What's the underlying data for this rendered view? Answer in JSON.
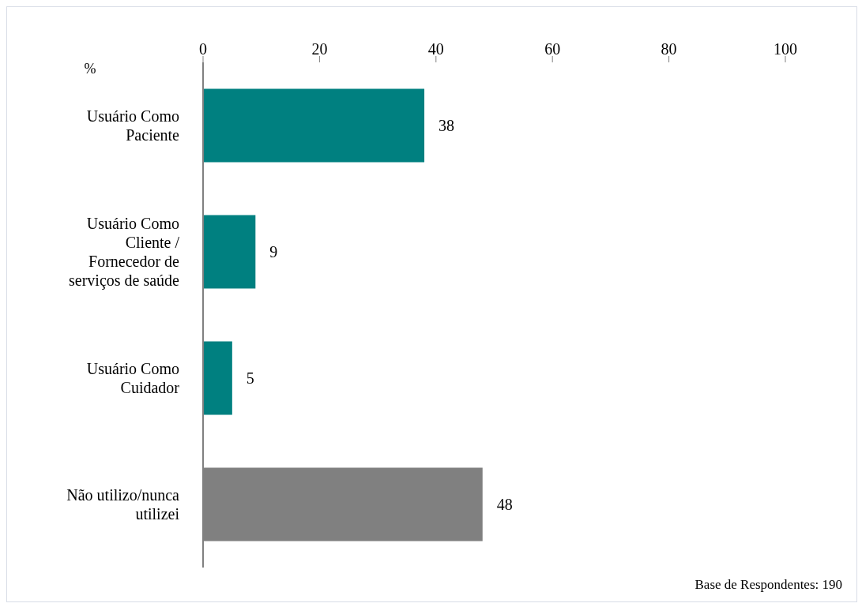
{
  "chart_data": {
    "type": "bar",
    "orientation": "horizontal",
    "xlabel": "%",
    "categories": [
      "Usuário Como Paciente",
      "Usuário Como Cliente / Fornecedor de serviços de saúde",
      "Usuário Como Cuidador",
      "Não utilizo/nunca utilizei"
    ],
    "values": [
      38,
      9,
      5,
      48
    ],
    "colors": [
      "#008080",
      "#008080",
      "#008080",
      "#808080"
    ],
    "xlim": [
      0,
      100
    ],
    "xticks": [
      0,
      20,
      40,
      60,
      80,
      100
    ],
    "data_labels": true,
    "annotations": [
      "Base de Respondentes: 190"
    ]
  }
}
